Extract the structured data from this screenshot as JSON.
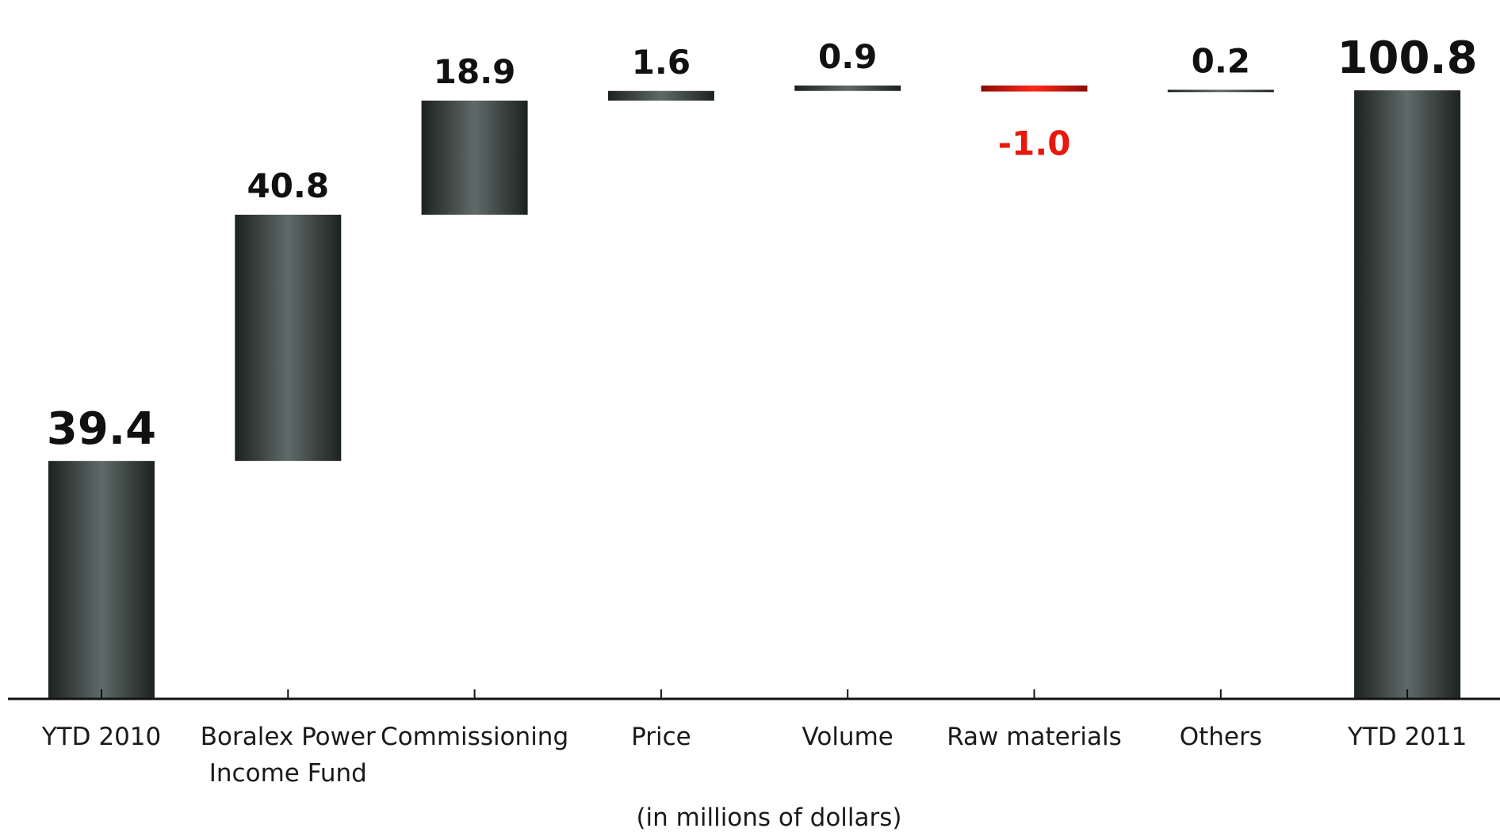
{
  "chart_data": {
    "type": "bar",
    "subtype": "waterfall",
    "categories": [
      "YTD 2010",
      "Boralex Power Income Fund",
      "Commissioning",
      "Price",
      "Volume",
      "Raw materials",
      "Others",
      "YTD 2011"
    ],
    "category_label_lines": [
      [
        "YTD 2010"
      ],
      [
        "Boralex Power",
        "Income Fund"
      ],
      [
        "Commissioning"
      ],
      [
        "Price"
      ],
      [
        "Volume"
      ],
      [
        "Raw materials"
      ],
      [
        "Others"
      ],
      [
        "YTD 2011"
      ]
    ],
    "values": [
      39.4,
      40.8,
      18.9,
      1.6,
      0.9,
      -1.0,
      0.2,
      100.8
    ],
    "value_labels": [
      "39.4",
      "40.8",
      "18.9",
      "1.6",
      "0.9",
      "-1.0",
      "0.2",
      "100.8"
    ],
    "bar_kinds": [
      "total",
      "delta",
      "delta",
      "delta",
      "delta",
      "delta",
      "delta",
      "total"
    ],
    "xlabel": "(in millions of dollars)",
    "ylabel": "",
    "ylim": [
      0,
      100.8
    ],
    "grid": false,
    "legend": "none",
    "colors": {
      "bar_dark": "#1c2220",
      "bar_light": "#5f6a68",
      "negative_dark": "#8a0c08",
      "negative_light": "#ff2a1a",
      "negative_text": "#e8180c",
      "axis": "#111111"
    }
  }
}
